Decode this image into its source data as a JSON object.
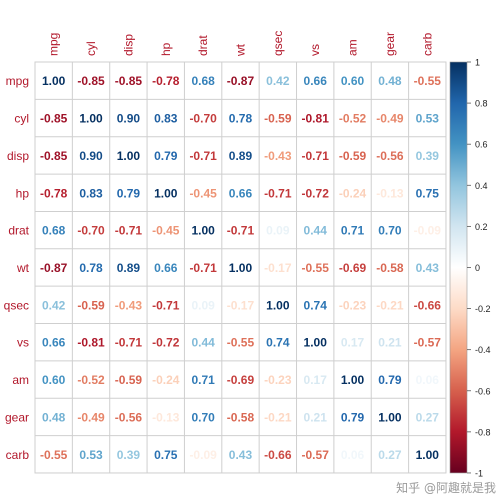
{
  "chart_data": {
    "type": "heatmap",
    "title": "",
    "variables": [
      "mpg",
      "cyl",
      "disp",
      "hp",
      "drat",
      "wt",
      "qsec",
      "vs",
      "am",
      "gear",
      "carb"
    ],
    "matrix": [
      [
        1.0,
        -0.85,
        -0.85,
        -0.78,
        0.68,
        -0.87,
        0.42,
        0.66,
        0.6,
        0.48,
        -0.55
      ],
      [
        -0.85,
        1.0,
        0.9,
        0.83,
        -0.7,
        0.78,
        -0.59,
        -0.81,
        -0.52,
        -0.49,
        0.53
      ],
      [
        -0.85,
        0.9,
        1.0,
        0.79,
        -0.71,
        0.89,
        -0.43,
        -0.71,
        -0.59,
        -0.56,
        0.39
      ],
      [
        -0.78,
        0.83,
        0.79,
        1.0,
        -0.45,
        0.66,
        -0.71,
        -0.72,
        -0.24,
        -0.13,
        0.75
      ],
      [
        0.68,
        -0.7,
        -0.71,
        -0.45,
        1.0,
        -0.71,
        0.09,
        0.44,
        0.71,
        0.7,
        -0.09
      ],
      [
        -0.87,
        0.78,
        0.89,
        0.66,
        -0.71,
        1.0,
        -0.17,
        -0.55,
        -0.69,
        -0.58,
        0.43
      ],
      [
        0.42,
        -0.59,
        -0.43,
        -0.71,
        0.09,
        -0.17,
        1.0,
        0.74,
        -0.23,
        -0.21,
        -0.66
      ],
      [
        0.66,
        -0.81,
        -0.71,
        -0.72,
        0.44,
        -0.55,
        0.74,
        1.0,
        0.17,
        0.21,
        -0.57
      ],
      [
        0.6,
        -0.52,
        -0.59,
        -0.24,
        0.71,
        -0.69,
        -0.23,
        0.17,
        1.0,
        0.79,
        0.06
      ],
      [
        0.48,
        -0.49,
        -0.56,
        -0.13,
        0.7,
        -0.58,
        -0.21,
        0.21,
        0.79,
        1.0,
        0.27
      ],
      [
        -0.55,
        0.53,
        0.39,
        0.75,
        -0.09,
        0.43,
        -0.66,
        -0.57,
        0.06,
        0.27,
        1.0
      ]
    ],
    "colorbar": {
      "range": [
        -1,
        1
      ],
      "ticks": [
        "1",
        "0.8",
        "0.6",
        "0.4",
        "0.2",
        "0",
        "-0.2",
        "-0.4",
        "-0.6",
        "-0.8",
        "-1"
      ],
      "colors": [
        "#053061",
        "#2166ac",
        "#4393c3",
        "#92c5de",
        "#d1e5f0",
        "#ffffff",
        "#fddbc7",
        "#f4a582",
        "#d6604d",
        "#b2182b",
        "#67001f"
      ]
    },
    "label_color": "#b2182b",
    "grid_color": "#cfcfcf"
  },
  "watermark": "知乎 @阿趣就是我"
}
